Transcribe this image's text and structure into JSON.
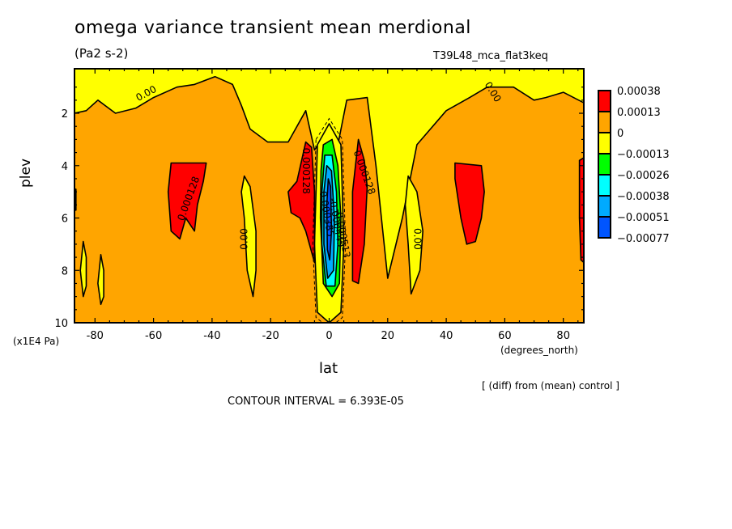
{
  "chart_data": {
    "type": "heatmap",
    "subtype": "filled-contour",
    "title": "omega variance transient mean merdional",
    "units": "(Pa2 s-2)",
    "run_label": "T39L48_mca_flat3keq",
    "xlabel": "lat",
    "x_units": "(degrees_north)",
    "ylabel": "plev",
    "y_units": "(x1E4 Pa)",
    "xlim": [
      -87,
      87
    ],
    "ylim": [
      10,
      0.3
    ],
    "y_inverted": true,
    "x_ticks": [
      -80,
      -60,
      -40,
      -20,
      0,
      20,
      40,
      60,
      80
    ],
    "x_tick_labels": [
      "-80",
      "-60",
      "-40",
      "-20",
      "0",
      "20",
      "40",
      "60",
      "80"
    ],
    "y_ticks": [
      2,
      4,
      6,
      8,
      10
    ],
    "y_tick_labels": [
      "2",
      "4",
      "6",
      "8",
      "10"
    ],
    "background_level_color": "#ffa500",
    "colorbar": {
      "position": "right",
      "levels": [
        "0.00038",
        "0.00013",
        "0",
        "-0.00013",
        "-0.00026",
        "-0.00038",
        "-0.00051",
        "-0.00077"
      ],
      "colors": [
        "#ff0000",
        "#ffa500",
        "#ffff00",
        "#00ff00",
        "#00ffff",
        "#00aaff",
        "#0055ff"
      ]
    },
    "contour_labels": [
      "0.00",
      "0.00",
      "0.000128",
      "0.000128",
      "0.000128",
      "0.00",
      "0.00",
      "-0.000385",
      "-0.000449",
      "-0.000513"
    ],
    "contour_interval": "6.393E-05",
    "regions": [
      {
        "name": "upper-yellow-band",
        "color": "#ffff00",
        "pts": [
          [
            -87,
            0.3
          ],
          [
            87,
            0.3
          ],
          [
            87,
            1.6
          ],
          [
            80,
            1.2
          ],
          [
            74,
            1.4
          ],
          [
            70,
            1.5
          ],
          [
            63,
            1.0
          ],
          [
            54,
            1.0
          ],
          [
            48,
            1.4
          ],
          [
            40,
            1.9
          ],
          [
            30,
            3.2
          ],
          [
            25,
            6.0
          ],
          [
            20,
            8.3
          ],
          [
            16,
            4.0
          ],
          [
            13,
            1.4
          ],
          [
            6,
            1.5
          ],
          [
            3,
            3.2
          ],
          [
            -1,
            2.8
          ],
          [
            -5,
            3.4
          ],
          [
            -8,
            1.9
          ],
          [
            -14,
            3.1
          ],
          [
            -21,
            3.1
          ],
          [
            -27,
            2.6
          ],
          [
            -30,
            1.7
          ],
          [
            -33,
            0.9
          ],
          [
            -39,
            0.6
          ],
          [
            -46,
            0.9
          ],
          [
            -52,
            1.0
          ],
          [
            -60,
            1.4
          ],
          [
            -66,
            1.8
          ],
          [
            -73,
            2.0
          ],
          [
            -79,
            1.5
          ],
          [
            -83,
            1.9
          ],
          [
            -87,
            2.0
          ]
        ]
      },
      {
        "name": "equatorial-yellow",
        "color": "#ffff00",
        "pts": [
          [
            -4,
            3.2
          ],
          [
            0,
            2.4
          ],
          [
            4,
            3.2
          ],
          [
            5,
            7
          ],
          [
            4,
            9.6
          ],
          [
            0,
            10
          ],
          [
            -4,
            9.6
          ],
          [
            -5,
            7
          ]
        ]
      },
      {
        "name": "equatorial-green",
        "color": "#00ff00",
        "pts": [
          [
            -2,
            3.2
          ],
          [
            1,
            3.0
          ],
          [
            3,
            4.0
          ],
          [
            4,
            6
          ],
          [
            3.5,
            8.5
          ],
          [
            1,
            9.0
          ],
          [
            -2,
            8.5
          ],
          [
            -3,
            6
          ],
          [
            -2.8,
            4.2
          ]
        ]
      },
      {
        "name": "equatorial-cyan",
        "color": "#00ffff",
        "pts": [
          [
            -1.5,
            3.6
          ],
          [
            1,
            3.6
          ],
          [
            2.5,
            5
          ],
          [
            3,
            7
          ],
          [
            2,
            8.6
          ],
          [
            -1,
            8.6
          ],
          [
            -2.5,
            7
          ],
          [
            -2.5,
            5
          ]
        ]
      },
      {
        "name": "equatorial-lightblue",
        "color": "#00aaff",
        "pts": [
          [
            -0.8,
            4.0
          ],
          [
            0.8,
            4.2
          ],
          [
            1.8,
            6
          ],
          [
            1.5,
            8.0
          ],
          [
            -0.5,
            8.3
          ],
          [
            -1.8,
            7
          ],
          [
            -1.8,
            5.0
          ]
        ]
      },
      {
        "name": "equatorial-blue",
        "color": "#0055ff",
        "pts": [
          [
            -0.3,
            4.5
          ],
          [
            0.5,
            4.8
          ],
          [
            0.8,
            6.5
          ],
          [
            0.2,
            7.6
          ],
          [
            -0.6,
            7.2
          ],
          [
            -0.8,
            5.5
          ]
        ]
      },
      {
        "name": "sh-midlat-red",
        "color": "#ff0000",
        "pts": [
          [
            -54,
            3.9
          ],
          [
            -42,
            3.9
          ],
          [
            -43,
            4.6
          ],
          [
            -45,
            5.5
          ],
          [
            -46,
            6.5
          ],
          [
            -49,
            6.0
          ],
          [
            -51,
            6.8
          ],
          [
            -54,
            6.5
          ],
          [
            -55,
            5
          ]
        ]
      },
      {
        "name": "sh-subtrop-red",
        "color": "#ff0000",
        "pts": [
          [
            -8,
            3.1
          ],
          [
            -6,
            3.3
          ],
          [
            -5,
            5.0
          ],
          [
            -5,
            7.7
          ],
          [
            -8,
            6.5
          ],
          [
            -10,
            6.0
          ],
          [
            -13,
            5.8
          ],
          [
            -14,
            5.0
          ],
          [
            -11,
            4.6
          ]
        ]
      },
      {
        "name": "nh-subtrop-red",
        "color": "#ff0000",
        "pts": [
          [
            10,
            3.0
          ],
          [
            12,
            3.8
          ],
          [
            13,
            4.8
          ],
          [
            12,
            7
          ],
          [
            10,
            8.5
          ],
          [
            8,
            8.4
          ],
          [
            8,
            5
          ]
        ]
      },
      {
        "name": "nh-midlat-red",
        "color": "#ff0000",
        "pts": [
          [
            43,
            3.9
          ],
          [
            52,
            4.0
          ],
          [
            53,
            5
          ],
          [
            52,
            6
          ],
          [
            50,
            6.9
          ],
          [
            47,
            7.0
          ],
          [
            45,
            6
          ],
          [
            43,
            4.5
          ]
        ]
      },
      {
        "name": "sh-yellow-lobe",
        "color": "#ffff00",
        "pts": [
          [
            -29,
            4.4
          ],
          [
            -27,
            4.8
          ],
          [
            -25,
            6.5
          ],
          [
            -25,
            8.0
          ],
          [
            -26,
            9.0
          ],
          [
            -28,
            8.0
          ],
          [
            -29,
            6.0
          ],
          [
            -30,
            5.0
          ]
        ]
      },
      {
        "name": "nh-yellow-lobe",
        "color": "#ffff00",
        "pts": [
          [
            27,
            4.4
          ],
          [
            30,
            5.0
          ],
          [
            32,
            6.5
          ],
          [
            31,
            8.0
          ],
          [
            28,
            8.9
          ],
          [
            27,
            7.0
          ],
          [
            26,
            5.5
          ]
        ]
      },
      {
        "name": "sh-polar-yellow-1",
        "color": "#ffff00",
        "pts": [
          [
            -84,
            6.9
          ],
          [
            -83,
            7.5
          ],
          [
            -83,
            8.6
          ],
          [
            -84,
            9.0
          ],
          [
            -85,
            8.0
          ]
        ]
      },
      {
        "name": "sh-polar-yellow-2",
        "color": "#ffff00",
        "pts": [
          [
            -78,
            7.4
          ],
          [
            -77,
            8.0
          ],
          [
            -77,
            9.0
          ],
          [
            -78,
            9.3
          ],
          [
            -79,
            8.5
          ]
        ]
      },
      {
        "name": "sh-edge-red",
        "color": "#ff0000",
        "pts": [
          [
            -87,
            4.9
          ],
          [
            -86.5,
            4.9
          ],
          [
            -86.5,
            5.7
          ],
          [
            -87,
            5.7
          ]
        ]
      },
      {
        "name": "nh-edge-red",
        "color": "#ff0000",
        "pts": [
          [
            85.5,
            3.8
          ],
          [
            87,
            3.7
          ],
          [
            87,
            7.7
          ],
          [
            86,
            7.6
          ],
          [
            85.5,
            6
          ]
        ]
      }
    ]
  }
}
